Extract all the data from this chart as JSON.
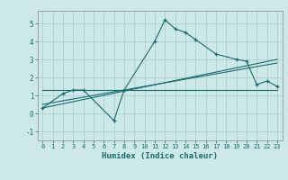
{
  "xlabel": "Humidex (Indice chaleur)",
  "xlim": [
    -0.5,
    23.5
  ],
  "ylim": [
    -1.5,
    5.7
  ],
  "xticks": [
    0,
    1,
    2,
    3,
    4,
    5,
    6,
    7,
    8,
    9,
    10,
    11,
    12,
    13,
    14,
    15,
    16,
    17,
    18,
    19,
    20,
    21,
    22,
    23
  ],
  "yticks": [
    -1,
    0,
    1,
    2,
    3,
    4,
    5
  ],
  "background_color": "#cce8e8",
  "grid_color": "#aacccc",
  "line_color": "#1a6b6b",
  "line1_x": [
    0,
    2,
    3,
    4,
    7,
    8,
    11,
    12,
    13,
    14,
    15,
    17,
    19,
    20,
    21,
    22,
    23
  ],
  "line1_y": [
    0.3,
    1.1,
    1.3,
    1.3,
    -0.4,
    1.3,
    4.0,
    5.2,
    4.7,
    4.5,
    4.1,
    3.3,
    3.0,
    2.9,
    1.6,
    1.8,
    1.5
  ],
  "line2_x": [
    0,
    23
  ],
  "line2_y": [
    1.3,
    1.3
  ],
  "line3_x": [
    0,
    23
  ],
  "line3_y": [
    0.3,
    3.0
  ],
  "line4_x": [
    0,
    23
  ],
  "line4_y": [
    0.5,
    2.8
  ],
  "tick_fontsize": 5.0,
  "xlabel_fontsize": 6.5
}
